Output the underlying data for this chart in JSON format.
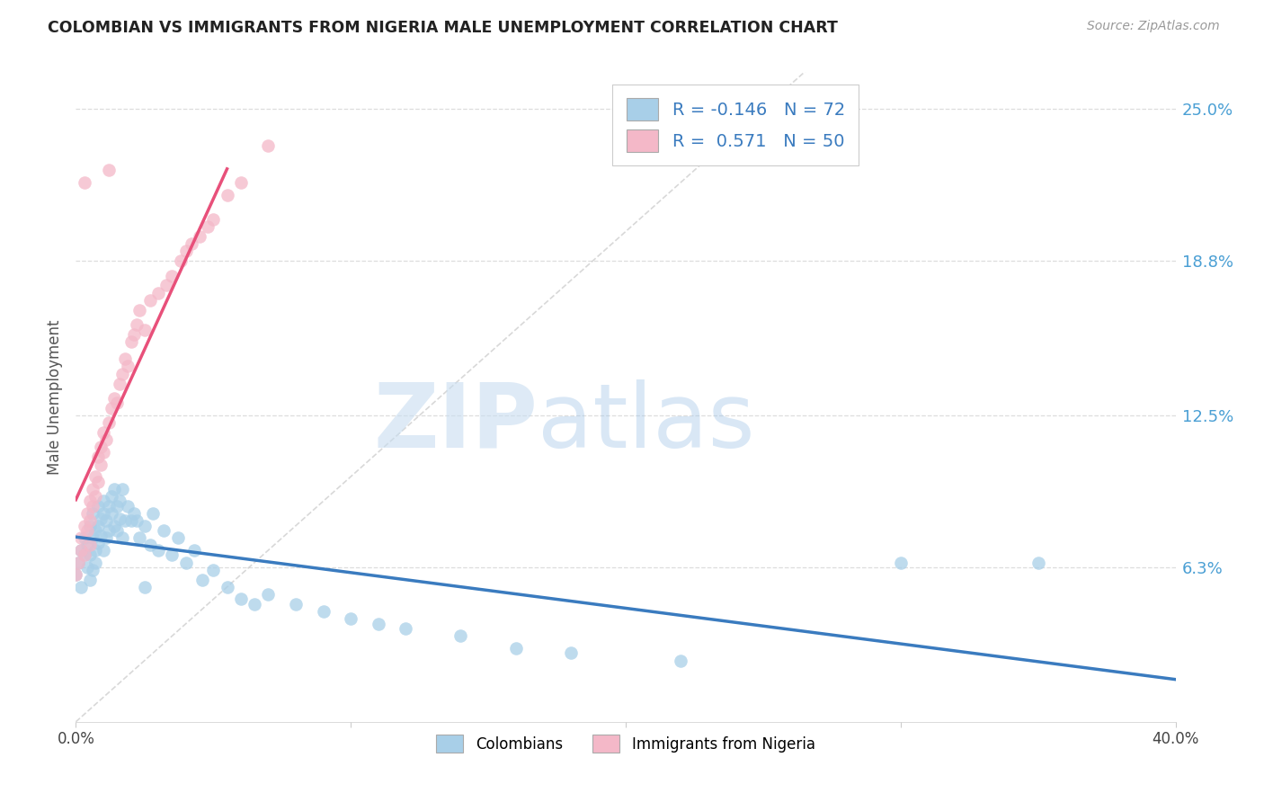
{
  "title": "COLOMBIAN VS IMMIGRANTS FROM NIGERIA MALE UNEMPLOYMENT CORRELATION CHART",
  "source": "Source: ZipAtlas.com",
  "ylabel": "Male Unemployment",
  "right_yticks": [
    "25.0%",
    "18.8%",
    "12.5%",
    "6.3%"
  ],
  "right_ytick_vals": [
    0.25,
    0.188,
    0.125,
    0.063
  ],
  "legend_blue_r": "-0.146",
  "legend_blue_n": "72",
  "legend_pink_r": "0.571",
  "legend_pink_n": "50",
  "xlim": [
    0.0,
    0.4
  ],
  "ylim": [
    0.0,
    0.265
  ],
  "blue_color": "#a8cfe8",
  "pink_color": "#f4b8c8",
  "blue_line_color": "#3a7bbf",
  "pink_line_color": "#e8507a",
  "diagonal_color": "#c8c8c8",
  "watermark_zip": "ZIP",
  "watermark_atlas": "atlas",
  "blue_label": "Colombians",
  "pink_label": "Immigrants from Nigeria",
  "blue_scatter_x": [
    0.0,
    0.001,
    0.002,
    0.002,
    0.003,
    0.003,
    0.004,
    0.004,
    0.005,
    0.005,
    0.005,
    0.006,
    0.006,
    0.006,
    0.007,
    0.007,
    0.007,
    0.008,
    0.008,
    0.008,
    0.009,
    0.009,
    0.01,
    0.01,
    0.01,
    0.011,
    0.011,
    0.012,
    0.012,
    0.013,
    0.013,
    0.014,
    0.014,
    0.015,
    0.015,
    0.016,
    0.016,
    0.017,
    0.017,
    0.018,
    0.019,
    0.02,
    0.021,
    0.022,
    0.023,
    0.025,
    0.027,
    0.028,
    0.03,
    0.032,
    0.035,
    0.037,
    0.04,
    0.043,
    0.046,
    0.05,
    0.055,
    0.06,
    0.065,
    0.07,
    0.08,
    0.09,
    0.1,
    0.11,
    0.12,
    0.14,
    0.16,
    0.18,
    0.22,
    0.3,
    0.35,
    0.025
  ],
  "blue_scatter_y": [
    0.06,
    0.065,
    0.07,
    0.055,
    0.068,
    0.075,
    0.072,
    0.063,
    0.08,
    0.058,
    0.068,
    0.075,
    0.062,
    0.085,
    0.07,
    0.078,
    0.065,
    0.08,
    0.073,
    0.088,
    0.076,
    0.083,
    0.085,
    0.07,
    0.09,
    0.082,
    0.075,
    0.088,
    0.078,
    0.085,
    0.092,
    0.08,
    0.095,
    0.078,
    0.088,
    0.083,
    0.09,
    0.075,
    0.095,
    0.082,
    0.088,
    0.082,
    0.085,
    0.082,
    0.075,
    0.08,
    0.072,
    0.085,
    0.07,
    0.078,
    0.068,
    0.075,
    0.065,
    0.07,
    0.058,
    0.062,
    0.055,
    0.05,
    0.048,
    0.052,
    0.048,
    0.045,
    0.042,
    0.04,
    0.038,
    0.035,
    0.03,
    0.028,
    0.025,
    0.065,
    0.065,
    0.055
  ],
  "pink_scatter_x": [
    0.0,
    0.001,
    0.002,
    0.002,
    0.003,
    0.003,
    0.004,
    0.004,
    0.005,
    0.005,
    0.005,
    0.006,
    0.006,
    0.007,
    0.007,
    0.008,
    0.008,
    0.009,
    0.009,
    0.01,
    0.01,
    0.011,
    0.012,
    0.013,
    0.014,
    0.015,
    0.016,
    0.017,
    0.018,
    0.019,
    0.02,
    0.021,
    0.022,
    0.023,
    0.025,
    0.027,
    0.03,
    0.033,
    0.035,
    0.038,
    0.04,
    0.042,
    0.045,
    0.048,
    0.05,
    0.055,
    0.06,
    0.07,
    0.003,
    0.012
  ],
  "pink_scatter_y": [
    0.06,
    0.065,
    0.07,
    0.075,
    0.068,
    0.08,
    0.078,
    0.085,
    0.082,
    0.09,
    0.072,
    0.088,
    0.095,
    0.092,
    0.1,
    0.098,
    0.108,
    0.105,
    0.112,
    0.11,
    0.118,
    0.115,
    0.122,
    0.128,
    0.132,
    0.13,
    0.138,
    0.142,
    0.148,
    0.145,
    0.155,
    0.158,
    0.162,
    0.168,
    0.16,
    0.172,
    0.175,
    0.178,
    0.182,
    0.188,
    0.192,
    0.195,
    0.198,
    0.202,
    0.205,
    0.215,
    0.22,
    0.235,
    0.22,
    0.225
  ]
}
